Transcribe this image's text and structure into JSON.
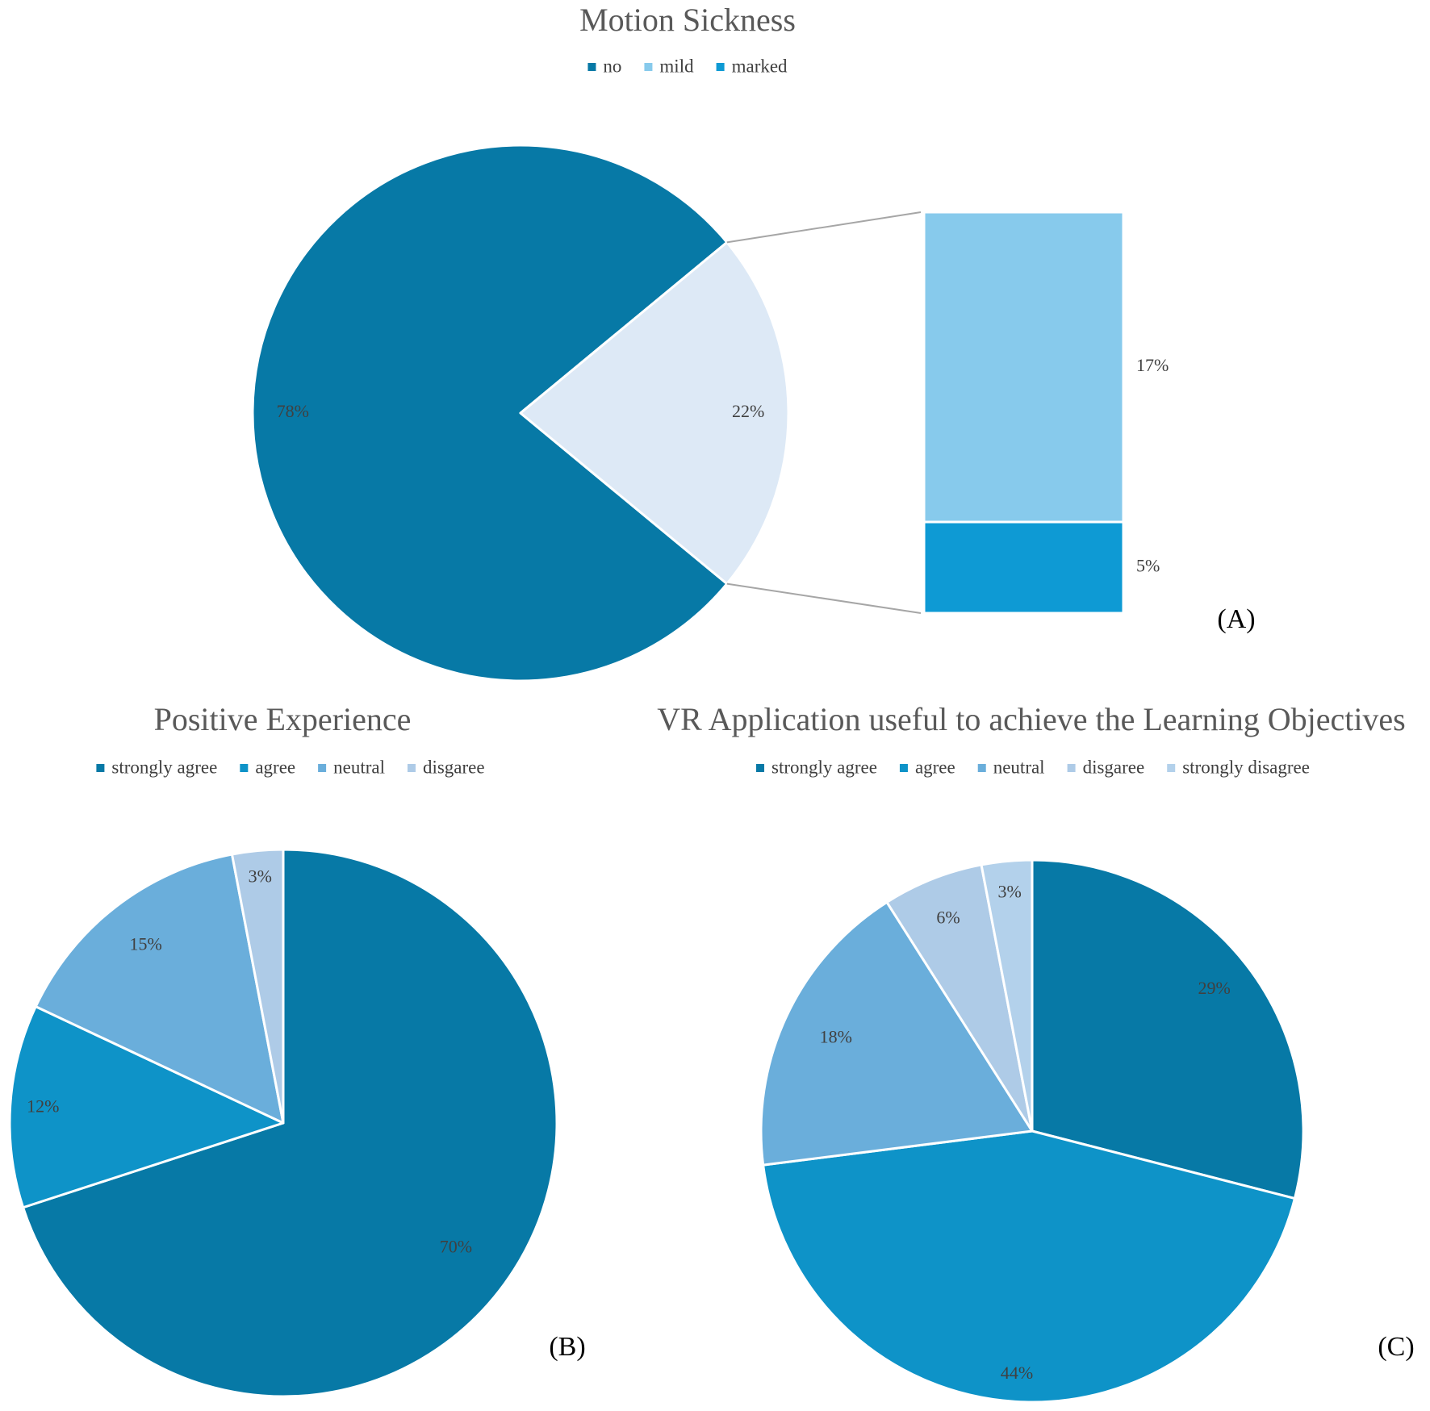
{
  "chart_data": [
    {
      "type": "pie",
      "panel": "(A)",
      "title": "Motion Sickness",
      "legend": [
        "no",
        "mild",
        "marked"
      ],
      "slices": [
        {
          "name": "no",
          "value": 78,
          "label": "78%"
        },
        {
          "name": "mild + marked",
          "value": 22,
          "label": "22%"
        }
      ],
      "breakdown": [
        {
          "name": "mild",
          "value": 17,
          "label": "17%"
        },
        {
          "name": "marked",
          "value": 5,
          "label": "5%"
        }
      ],
      "colors": {
        "no": "#0779a6",
        "other": "#dde9f6",
        "mild": "#87caec",
        "marked": "#0e9ad4"
      },
      "legend_placement": "top"
    },
    {
      "type": "pie",
      "panel": "(B)",
      "title": "Positive Experience",
      "legend": [
        "strongly agree",
        "agree",
        "neutral",
        "disgaree"
      ],
      "slices": [
        {
          "name": "strongly agree",
          "value": 70,
          "label": "70%"
        },
        {
          "name": "agree",
          "value": 12,
          "label": "12%"
        },
        {
          "name": "neutral",
          "value": 15,
          "label": "15%"
        },
        {
          "name": "disgaree",
          "value": 3,
          "label": "3%"
        }
      ],
      "colors": [
        "#0779a6",
        "#0e93c8",
        "#6aaedb",
        "#aecbe7"
      ],
      "legend_placement": "top"
    },
    {
      "type": "pie",
      "panel": "(C)",
      "title": "VR Application useful to achieve the Learning Objectives",
      "legend": [
        "strongly agree",
        "agree",
        "neutral",
        "disgaree",
        "strongly disagree"
      ],
      "slices": [
        {
          "name": "strongly agree",
          "value": 29,
          "label": "29%"
        },
        {
          "name": "agree",
          "value": 44,
          "label": "44%"
        },
        {
          "name": "neutral",
          "value": 18,
          "label": "18%"
        },
        {
          "name": "disgaree",
          "value": 6,
          "label": "6%"
        },
        {
          "name": "strongly disagree",
          "value": 3,
          "label": "3%"
        }
      ],
      "colors": [
        "#0779a6",
        "#0e93c8",
        "#6aaedb",
        "#aecbe7",
        "#b3d1eb"
      ],
      "legend_placement": "top"
    }
  ]
}
